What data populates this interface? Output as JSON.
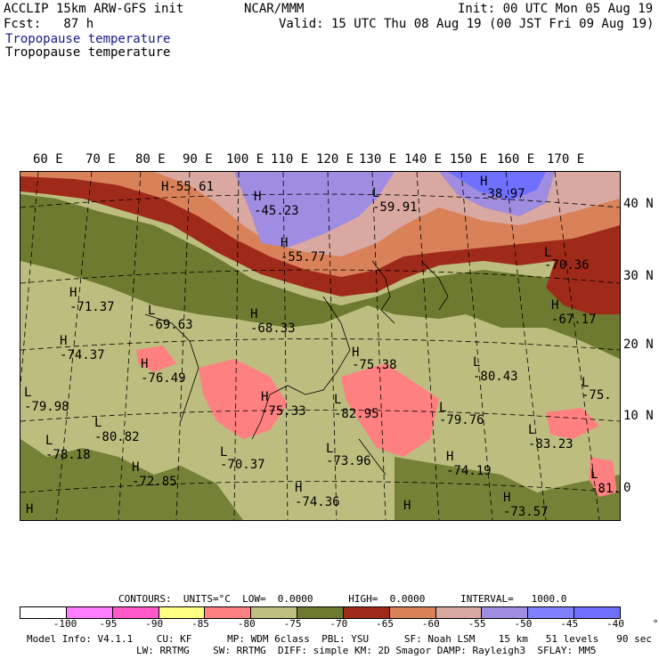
{
  "header": {
    "model_line": "ACCLIP 15km ARW-GFS init",
    "fcst_line": "Fcst:   87 h",
    "source": "NCAR/MMM",
    "init": "Init: 00 UTC Mon 05 Aug 19",
    "valid": "Valid: 15 UTC Thu 08 Aug 19 (00 JST Fri 09 Aug 19)",
    "field_title_1": "Tropopause temperature",
    "field_title_2": "Tropopause temperature"
  },
  "axes": {
    "lon_labels": [
      "60 E",
      "70 E",
      "80 E",
      "90 E",
      "100 E",
      "110 E",
      "120 E",
      "130 E",
      "140 E",
      "150 E",
      "160 E",
      "170 E"
    ],
    "lat_labels": [
      "40 N",
      "30 N",
      "20 N",
      "10 N",
      "0"
    ]
  },
  "map_labels": [
    {
      "t": "H",
      "v": "-55.61"
    },
    {
      "t": "H",
      "v": "-45.23"
    },
    {
      "t": "L",
      "v": "-59.91"
    },
    {
      "t": "H",
      "v": "-38.97"
    },
    {
      "t": "H",
      "v": "-55.77"
    },
    {
      "t": "L",
      "v": "-70.36"
    },
    {
      "t": "H",
      "v": "-71.37"
    },
    {
      "t": "L",
      "v": "-69.63"
    },
    {
      "t": "H",
      "v": "-68.33"
    },
    {
      "t": "H",
      "v": "-67.17"
    },
    {
      "t": "H",
      "v": "-74.37"
    },
    {
      "t": "H",
      "v": "-75.38"
    },
    {
      "t": "H",
      "v": "-76.49"
    },
    {
      "t": "L",
      "v": "-80.43"
    },
    {
      "t": "L",
      "v": "-75."
    },
    {
      "t": "L",
      "v": "-79.98"
    },
    {
      "t": "H",
      "v": "-75.33"
    },
    {
      "t": "L",
      "v": "-82.95"
    },
    {
      "t": "L",
      "v": "-79.76"
    },
    {
      "t": "L",
      "v": "-80.82"
    },
    {
      "t": "L",
      "v": "-83.23"
    },
    {
      "t": "L",
      "v": "-78.18"
    },
    {
      "t": "L",
      "v": "-70.37"
    },
    {
      "t": "L",
      "v": "-73.96"
    },
    {
      "t": "H",
      "v": "-74.19"
    },
    {
      "t": "H",
      "v": "-72.85"
    },
    {
      "t": "L",
      "v": "-81."
    },
    {
      "t": "H",
      "v": "-74.36"
    },
    {
      "t": "H",
      "v": "-73.57"
    },
    {
      "t": "H",
      "v": ""
    },
    {
      "t": "H",
      "v": ""
    }
  ],
  "contours": {
    "line": "CONTOURS:  UNITS=°C  LOW=  0.0000      HIGH=  0.0000      INTERVAL=   1000.0"
  },
  "colorbar": {
    "colors": [
      "#ffffff",
      "#ff7dff",
      "#ff5ac8",
      "#ffff80",
      "#ff8080",
      "#bfbf80",
      "#6e7a30",
      "#a02a1a",
      "#d9825a",
      "#d9a8a0",
      "#a08ce0",
      "#8080ff",
      "#7070ff"
    ],
    "labels": [
      "-100",
      "-95",
      "-90",
      "-85",
      "-80",
      "-75",
      "-70",
      "-65",
      "-60",
      "-55",
      "-50",
      "-45",
      "-40",
      "°C"
    ]
  },
  "model_info": {
    "line1": "Model Info: V4.1.1    CU: KF      MP: WDM 6class  PBL: YSU      SF: Noah LSM    15 km   51 levels   90 sec",
    "line2": "LW: RRTMG    SW: RRTMG  DIFF: simple KM: 2D Smagor DAMP: Rayleigh3  SFLAY: MM5"
  },
  "colors": {
    "olive_light": "#bdbd80",
    "olive_dark": "#6e7a30",
    "red": "#a02a1a",
    "orange": "#d9825a",
    "pink_brown": "#d9a8a0",
    "pink": "#ff8080",
    "lavender": "#a08ce0",
    "blue": "#7070ff"
  }
}
